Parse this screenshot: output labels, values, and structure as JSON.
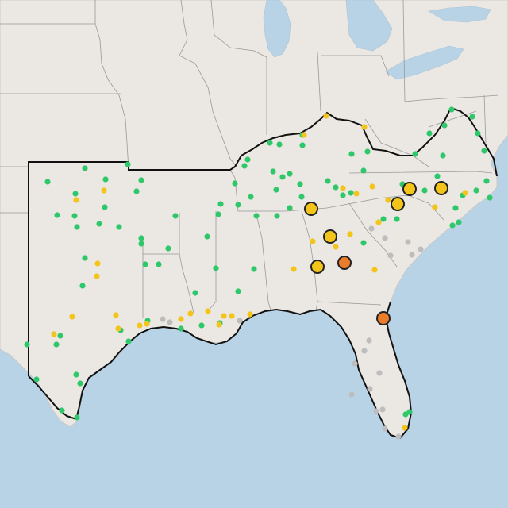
{
  "map": {
    "colors": {
      "water": "#b9d3e6",
      "land": "#ebe7e3",
      "state_border": "#9a9a9a",
      "region_outline": "#111111",
      "marker_green": "#2ec86b",
      "marker_yellow": "#f3c41a",
      "marker_orange": "#ea7c2a",
      "marker_gray": "#bdbdbd",
      "marker_stroke": "#222222"
    },
    "legend": [],
    "markers": {
      "green": [
        [
          34,
          434
        ],
        [
          60,
          229
        ],
        [
          95,
          244
        ],
        [
          107,
          212
        ],
        [
          133,
          226
        ],
        [
          161,
          207
        ],
        [
          178,
          227
        ],
        [
          172,
          241
        ],
        [
          132,
          261
        ],
        [
          94,
          272
        ],
        [
          72,
          271
        ],
        [
          97,
          286
        ],
        [
          125,
          282
        ],
        [
          150,
          286
        ],
        [
          178,
          307
        ],
        [
          212,
          313
        ],
        [
          183,
          333
        ],
        [
          200,
          333
        ],
        [
          221,
          272
        ],
        [
          261,
          298
        ],
        [
          278,
          257
        ],
        [
          275,
          270
        ],
        [
          296,
          231
        ],
        [
          312,
          201
        ],
        [
          308,
          209
        ],
        [
          340,
          180
        ],
        [
          352,
          182
        ],
        [
          381,
          170
        ],
        [
          381,
          183
        ],
        [
          344,
          216
        ],
        [
          356,
          223
        ],
        [
          365,
          219
        ],
        [
          378,
          232
        ],
        [
          348,
          239
        ],
        [
          316,
          248
        ],
        [
          300,
          258
        ],
        [
          323,
          272
        ],
        [
          349,
          272
        ],
        [
          365,
          262
        ],
        [
          380,
          248
        ],
        [
          413,
          228
        ],
        [
          423,
          236
        ],
        [
          432,
          246
        ],
        [
          442,
          243
        ],
        [
          458,
          215
        ],
        [
          443,
          194
        ],
        [
          463,
          191
        ],
        [
          523,
          194
        ],
        [
          541,
          168
        ],
        [
          560,
          158
        ],
        [
          569,
          138
        ],
        [
          595,
          147
        ],
        [
          602,
          168
        ],
        [
          610,
          190
        ],
        [
          613,
          228
        ],
        [
          600,
          240
        ],
        [
          583,
          246
        ],
        [
          574,
          262
        ],
        [
          578,
          280
        ],
        [
          617,
          249
        ],
        [
          551,
          222
        ],
        [
          535,
          240
        ],
        [
          507,
          232
        ],
        [
          500,
          276
        ],
        [
          483,
          276
        ],
        [
          458,
          306
        ],
        [
          272,
          338
        ],
        [
          320,
          339
        ],
        [
          246,
          369
        ],
        [
          300,
          367
        ],
        [
          277,
          407
        ],
        [
          254,
          410
        ],
        [
          228,
          414
        ],
        [
          186,
          404
        ],
        [
          152,
          416
        ],
        [
          162,
          430
        ],
        [
          76,
          423
        ],
        [
          71,
          434
        ],
        [
          96,
          472
        ],
        [
          101,
          483
        ],
        [
          46,
          478
        ],
        [
          78,
          517
        ],
        [
          97,
          526
        ],
        [
          178,
          300
        ],
        [
          107,
          325
        ],
        [
          104,
          360
        ],
        [
          516,
          519
        ],
        [
          511,
          522
        ],
        [
          570,
          284
        ],
        [
          558,
          196
        ]
      ],
      "yellow": [
        [
          411,
          146
        ],
        [
          459,
          160
        ],
        [
          383,
          170
        ],
        [
          131,
          240
        ],
        [
          96,
          252
        ],
        [
          123,
          332
        ],
        [
          122,
          348
        ],
        [
          91,
          399
        ],
        [
          146,
          397
        ],
        [
          149,
          414
        ],
        [
          176,
          410
        ],
        [
          185,
          408
        ],
        [
          228,
          402
        ],
        [
          262,
          392
        ],
        [
          282,
          398
        ],
        [
          292,
          398
        ],
        [
          315,
          396
        ],
        [
          240,
          395
        ],
        [
          449,
          244
        ],
        [
          469,
          235
        ],
        [
          489,
          252
        ],
        [
          477,
          280
        ],
        [
          441,
          295
        ],
        [
          423,
          311
        ],
        [
          394,
          304
        ],
        [
          472,
          340
        ],
        [
          548,
          261
        ],
        [
          586,
          243
        ],
        [
          510,
          539
        ],
        [
          432,
          237
        ],
        [
          370,
          339
        ],
        [
          68,
          421
        ],
        [
          276,
          409
        ]
      ],
      "gray": [
        [
          205,
          402
        ],
        [
          214,
          406
        ],
        [
          302,
          404
        ],
        [
          468,
          288
        ],
        [
          485,
          300
        ],
        [
          492,
          322
        ],
        [
          514,
          305
        ],
        [
          530,
          314
        ],
        [
          519,
          321
        ],
        [
          465,
          429
        ],
        [
          459,
          442
        ],
        [
          478,
          470
        ],
        [
          466,
          490
        ],
        [
          474,
          518
        ],
        [
          482,
          516
        ],
        [
          485,
          540
        ],
        [
          502,
          550
        ],
        [
          443,
          497
        ],
        [
          447,
          458
        ]
      ],
      "large_yellow": [
        [
          392,
          263
        ],
        [
          416,
          298
        ],
        [
          400,
          336
        ],
        [
          501,
          257
        ],
        [
          516,
          238
        ],
        [
          556,
          237
        ]
      ],
      "large_orange": [
        [
          434,
          331
        ],
        [
          483,
          401
        ]
      ]
    }
  }
}
